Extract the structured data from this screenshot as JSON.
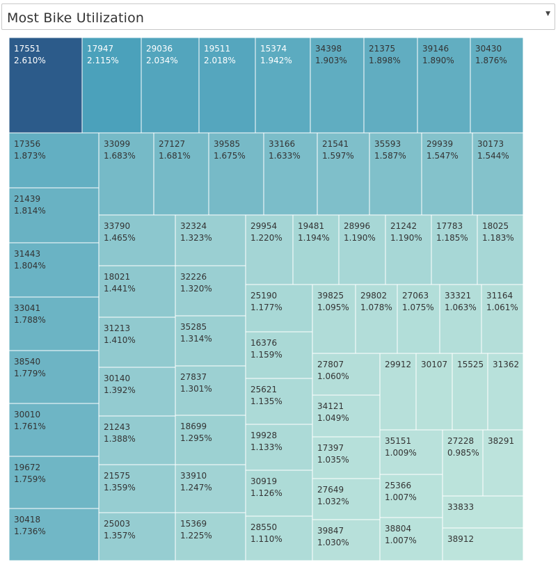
{
  "filter": {
    "label": "Most Bike Utilization",
    "arrow_icon": "chevron-down-icon"
  },
  "colors": {
    "dark": "#2c5b8a",
    "mid": "#3b97b6",
    "light": "#bde4dc",
    "border": "#ffffff",
    "text_light": "#ffffff",
    "text_dark": "#333333"
  },
  "chart_data": {
    "type": "treemap",
    "title": "",
    "values": [
      {
        "bike": "17551",
        "pct": 2.61,
        "label": "2.610%"
      },
      {
        "bike": "17947",
        "pct": 2.115,
        "label": "2.115%"
      },
      {
        "bike": "29036",
        "pct": 2.034,
        "label": "2.034%"
      },
      {
        "bike": "19511",
        "pct": 2.018,
        "label": "2.018%"
      },
      {
        "bike": "15374",
        "pct": 1.942,
        "label": "1.942%"
      },
      {
        "bike": "34398",
        "pct": 1.903,
        "label": "1.903%"
      },
      {
        "bike": "21375",
        "pct": 1.898,
        "label": "1.898%"
      },
      {
        "bike": "39146",
        "pct": 1.89,
        "label": "1.890%"
      },
      {
        "bike": "30430",
        "pct": 1.876,
        "label": "1.876%"
      },
      {
        "bike": "17356",
        "pct": 1.873,
        "label": "1.873%"
      },
      {
        "bike": "21439",
        "pct": 1.814,
        "label": "1.814%"
      },
      {
        "bike": "31443",
        "pct": 1.804,
        "label": "1.804%"
      },
      {
        "bike": "33041",
        "pct": 1.788,
        "label": "1.788%"
      },
      {
        "bike": "38540",
        "pct": 1.779,
        "label": "1.779%"
      },
      {
        "bike": "30010",
        "pct": 1.761,
        "label": "1.761%"
      },
      {
        "bike": "19672",
        "pct": 1.759,
        "label": "1.759%"
      },
      {
        "bike": "30418",
        "pct": 1.736,
        "label": "1.736%"
      },
      {
        "bike": "33099",
        "pct": 1.683,
        "label": "1.683%"
      },
      {
        "bike": "27127",
        "pct": 1.681,
        "label": "1.681%"
      },
      {
        "bike": "39585",
        "pct": 1.675,
        "label": "1.675%"
      },
      {
        "bike": "33166",
        "pct": 1.633,
        "label": "1.633%"
      },
      {
        "bike": "21541",
        "pct": 1.597,
        "label": "1.597%"
      },
      {
        "bike": "35593",
        "pct": 1.587,
        "label": "1.587%"
      },
      {
        "bike": "29939",
        "pct": 1.547,
        "label": "1.547%"
      },
      {
        "bike": "30173",
        "pct": 1.544,
        "label": "1.544%"
      },
      {
        "bike": "33790",
        "pct": 1.465,
        "label": "1.465%"
      },
      {
        "bike": "32324",
        "pct": 1.323,
        "label": "1.323%"
      },
      {
        "bike": "18021",
        "pct": 1.441,
        "label": "1.441%"
      },
      {
        "bike": "32226",
        "pct": 1.32,
        "label": "1.320%"
      },
      {
        "bike": "31213",
        "pct": 1.41,
        "label": "1.410%"
      },
      {
        "bike": "35285",
        "pct": 1.314,
        "label": "1.314%"
      },
      {
        "bike": "30140",
        "pct": 1.392,
        "label": "1.392%"
      },
      {
        "bike": "27837",
        "pct": 1.301,
        "label": "1.301%"
      },
      {
        "bike": "21243",
        "pct": 1.388,
        "label": "1.388%"
      },
      {
        "bike": "18699",
        "pct": 1.295,
        "label": "1.295%"
      },
      {
        "bike": "21575",
        "pct": 1.359,
        "label": "1.359%"
      },
      {
        "bike": "33910",
        "pct": 1.247,
        "label": "1.247%"
      },
      {
        "bike": "25003",
        "pct": 1.357,
        "label": "1.357%"
      },
      {
        "bike": "15369",
        "pct": 1.225,
        "label": "1.225%"
      },
      {
        "bike": "29954",
        "pct": 1.22,
        "label": "1.220%"
      },
      {
        "bike": "19481",
        "pct": 1.194,
        "label": "1.194%"
      },
      {
        "bike": "28996",
        "pct": 1.19,
        "label": "1.190%"
      },
      {
        "bike": "21242",
        "pct": 1.19,
        "label": "1.190%"
      },
      {
        "bike": "17783",
        "pct": 1.185,
        "label": "1.185%"
      },
      {
        "bike": "18025",
        "pct": 1.183,
        "label": "1.183%"
      },
      {
        "bike": "25190",
        "pct": 1.177,
        "label": "1.177%"
      },
      {
        "bike": "39825",
        "pct": 1.095,
        "label": "1.095%"
      },
      {
        "bike": "29802",
        "pct": 1.078,
        "label": "1.078%"
      },
      {
        "bike": "27063",
        "pct": 1.075,
        "label": "1.075%"
      },
      {
        "bike": "33321",
        "pct": 1.063,
        "label": "1.063%"
      },
      {
        "bike": "31164",
        "pct": 1.061,
        "label": "1.061%"
      },
      {
        "bike": "16376",
        "pct": 1.159,
        "label": "1.159%"
      },
      {
        "bike": "25621",
        "pct": 1.135,
        "label": "1.135%"
      },
      {
        "bike": "19928",
        "pct": 1.133,
        "label": "1.133%"
      },
      {
        "bike": "30919",
        "pct": 1.126,
        "label": "1.126%"
      },
      {
        "bike": "28550",
        "pct": 1.11,
        "label": "1.110%"
      },
      {
        "bike": "27807",
        "pct": 1.06,
        "label": "1.060%"
      },
      {
        "bike": "34121",
        "pct": 1.049,
        "label": "1.049%"
      },
      {
        "bike": "17397",
        "pct": 1.035,
        "label": "1.035%"
      },
      {
        "bike": "27649",
        "pct": 1.032,
        "label": "1.032%"
      },
      {
        "bike": "39847",
        "pct": 1.03,
        "label": "1.030%"
      },
      {
        "bike": "29912",
        "pct": 1.025,
        "label": ""
      },
      {
        "bike": "30107",
        "pct": 1.02,
        "label": ""
      },
      {
        "bike": "15525",
        "pct": 1.017,
        "label": ""
      },
      {
        "bike": "31362",
        "pct": 1.015,
        "label": ""
      },
      {
        "bike": "35151",
        "pct": 1.009,
        "label": "1.009%"
      },
      {
        "bike": "25366",
        "pct": 1.007,
        "label": "1.007%"
      },
      {
        "bike": "38804",
        "pct": 1.007,
        "label": "1.007%"
      },
      {
        "bike": "27228",
        "pct": 0.985,
        "label": "0.985%"
      },
      {
        "bike": "38291",
        "pct": 0.975,
        "label": ""
      },
      {
        "bike": "33833",
        "pct": 0.97,
        "label": ""
      },
      {
        "bike": "38912",
        "pct": 0.965,
        "label": ""
      }
    ]
  }
}
